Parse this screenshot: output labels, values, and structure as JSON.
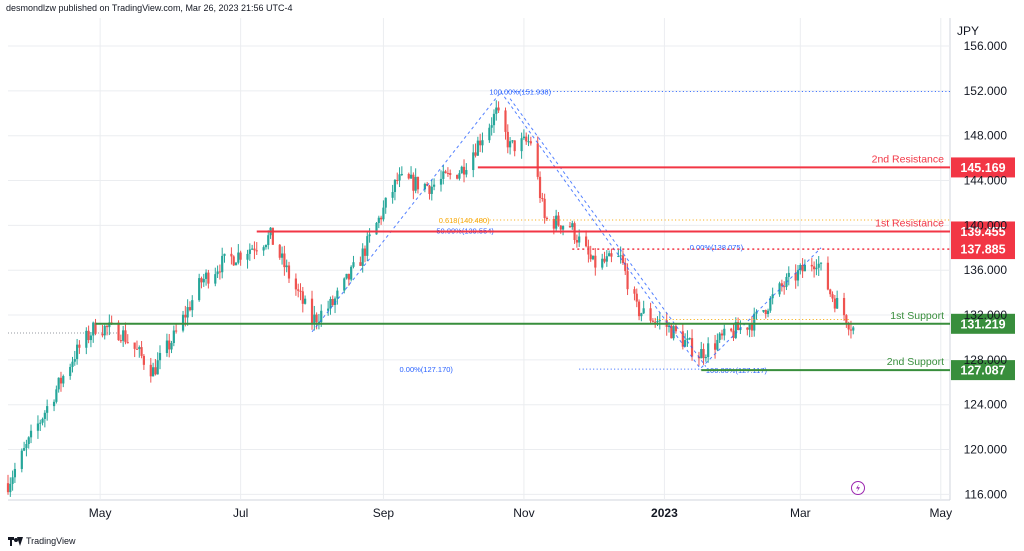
{
  "header": {
    "publisher": "desmondlzw published on TradingView.com, Mar 26, 2023 21:56 UTC-4"
  },
  "brand": {
    "name": "TradingView"
  },
  "chart_data": {
    "type": "candlestick",
    "currency": "JPY",
    "ylim": [
      115.5,
      158.5
    ],
    "y_ticks": [
      "116.000",
      "120.000",
      "124.000",
      "128.000",
      "132.000",
      "136.000",
      "140.000",
      "144.000",
      "148.000",
      "152.000",
      "156.000"
    ],
    "x_range": [
      "2022-03-22",
      "2023-05-05"
    ],
    "x_ticks": [
      {
        "label": "May",
        "date": "2022-05-01"
      },
      {
        "label": "Jul",
        "date": "2022-07-01"
      },
      {
        "label": "Sep",
        "date": "2022-09-01"
      },
      {
        "label": "Nov",
        "date": "2022-11-01"
      },
      {
        "label": "2023",
        "date": "2023-01-01",
        "bold": true
      },
      {
        "label": "Mar",
        "date": "2023-03-01"
      },
      {
        "label": "May",
        "date": "2023-05-01"
      }
    ],
    "price_path": [
      {
        "date": "2022-03-22",
        "price": 117.0
      },
      {
        "date": "2022-04-06",
        "price": 123.0
      },
      {
        "date": "2022-04-20",
        "price": 128.5
      },
      {
        "date": "2022-04-29",
        "price": 131.0
      },
      {
        "date": "2022-05-10",
        "price": 130.5
      },
      {
        "date": "2022-05-24",
        "price": 127.0
      },
      {
        "date": "2022-06-02",
        "price": 130.0
      },
      {
        "date": "2022-06-14",
        "price": 135.0
      },
      {
        "date": "2022-06-22",
        "price": 136.5
      },
      {
        "date": "2022-07-14",
        "price": 139.0
      },
      {
        "date": "2022-07-22",
        "price": 135.5
      },
      {
        "date": "2022-08-01",
        "price": 131.5
      },
      {
        "date": "2022-08-10",
        "price": 133.0
      },
      {
        "date": "2022-08-22",
        "price": 137.0
      },
      {
        "date": "2022-09-07",
        "price": 144.0
      },
      {
        "date": "2022-09-22",
        "price": 143.5
      },
      {
        "date": "2022-10-05",
        "price": 145.0
      },
      {
        "date": "2022-10-20",
        "price": 150.0
      },
      {
        "date": "2022-10-26",
        "price": 147.0
      },
      {
        "date": "2022-11-04",
        "price": 147.5
      },
      {
        "date": "2022-11-10",
        "price": 140.5
      },
      {
        "date": "2022-11-21",
        "price": 140.0
      },
      {
        "date": "2022-12-01",
        "price": 136.5
      },
      {
        "date": "2022-12-13",
        "price": 137.0
      },
      {
        "date": "2022-12-20",
        "price": 132.5
      },
      {
        "date": "2023-01-02",
        "price": 131.0
      },
      {
        "date": "2023-01-16",
        "price": 128.5
      },
      {
        "date": "2023-01-27",
        "price": 130.0
      },
      {
        "date": "2023-02-09",
        "price": 131.5
      },
      {
        "date": "2023-02-21",
        "price": 134.5
      },
      {
        "date": "2023-03-08",
        "price": 137.0
      },
      {
        "date": "2023-03-14",
        "price": 134.0
      },
      {
        "date": "2023-03-24",
        "price": 130.8
      }
    ],
    "levels": [
      {
        "price": 145.169,
        "label": "2nd Resistance",
        "value": "145.169",
        "color": "#f23645",
        "start": "2022-10-12"
      },
      {
        "price": 139.455,
        "label": "1st Resistance",
        "value": "139.455",
        "color": "#f23645",
        "start": "2022-07-08"
      },
      {
        "price": 137.885,
        "value": "137.885",
        "color": "#f23645",
        "start": "2022-11-22",
        "dashed": true
      },
      {
        "price": 131.219,
        "label": "1st Support",
        "value": "131.219",
        "color": "#388e3c",
        "start": "2022-04-29"
      },
      {
        "price": 127.087,
        "label": "2nd Support",
        "value": "127.087",
        "color": "#388e3c",
        "start": "2023-01-17"
      }
    ],
    "fib_labels": [
      {
        "text": "100.00%(151.938)",
        "price": 151.938,
        "date": "2022-10-17",
        "color": "#2962ff"
      },
      {
        "text": "0.618(140.480)",
        "price": 140.48,
        "date": "2022-09-25",
        "color": "#f7a600"
      },
      {
        "text": "50.00%(139.554)",
        "price": 139.554,
        "date": "2022-09-24",
        "color": "#2962ff"
      },
      {
        "text": "0.00%(138.075)",
        "price": 138.075,
        "date": "2023-01-12",
        "color": "#2962ff"
      },
      {
        "text": "0.00%(127.170)",
        "price": 127.17,
        "date": "2022-09-08",
        "color": "#2962ff"
      },
      {
        "text": "100.00%(127.117)",
        "price": 127.117,
        "date": "2023-01-19",
        "color": "#2962ff"
      }
    ],
    "fib_lines": [
      {
        "price": 151.938,
        "from": "2022-10-22",
        "to": "2023-05-10",
        "color": "#2962ff"
      },
      {
        "price": 140.48,
        "from": "2022-10-08",
        "to": "2023-05-10",
        "color": "#f7a600"
      },
      {
        "price": 127.17,
        "from": "2022-11-25",
        "to": "2023-01-17",
        "color": "#2962ff"
      },
      {
        "price": 131.6,
        "from": "2022-12-28",
        "to": "2023-03-22",
        "color": "#f7a600"
      }
    ],
    "trend_lines": [
      {
        "from": {
          "date": "2022-08-01",
          "price": 130.5
        },
        "to": {
          "date": "2022-10-22",
          "price": 151.9
        }
      },
      {
        "from": {
          "date": "2022-10-22",
          "price": 151.9
        },
        "to": {
          "date": "2023-01-17",
          "price": 127.1
        }
      },
      {
        "from": {
          "date": "2022-10-26",
          "price": 151.3
        },
        "to": {
          "date": "2023-01-19",
          "price": 127.4
        }
      },
      {
        "from": {
          "date": "2023-01-17",
          "price": 127.3
        },
        "to": {
          "date": "2023-03-10",
          "price": 138.0
        }
      }
    ],
    "colors": {
      "up": "#26a69a",
      "down": "#ef5350",
      "axis_text": "#131722",
      "grid": "#ebedf0"
    }
  }
}
